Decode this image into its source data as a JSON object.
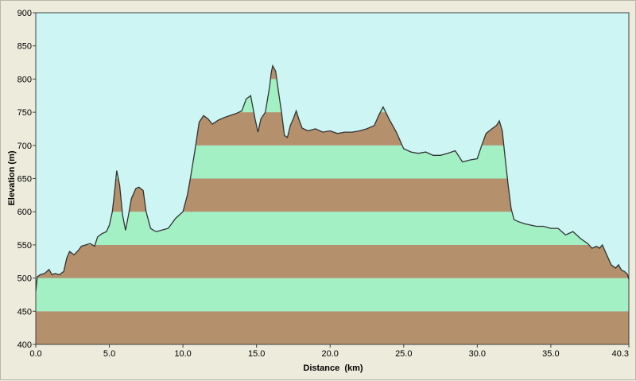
{
  "chart_data": {
    "type": "area",
    "title": "",
    "xlabel": "Distance  (km)",
    "ylabel": "Elevation (m)",
    "xlim": [
      0,
      40.3
    ],
    "ylim": [
      400,
      900
    ],
    "x_ticks": [
      "0.0",
      "5.0",
      "10.0",
      "15.0",
      "20.0",
      "25.0",
      "30.0",
      "35.0",
      "40.3"
    ],
    "x_tick_values": [
      0,
      5,
      10,
      15,
      20,
      25,
      30,
      35,
      40.3
    ],
    "y_ticks": [
      "400",
      "450",
      "500",
      "550",
      "600",
      "650",
      "700",
      "750",
      "800",
      "850",
      "900"
    ],
    "y_tick_values": [
      400,
      450,
      500,
      550,
      600,
      650,
      700,
      750,
      800,
      850,
      900
    ],
    "band_size": 50,
    "grid": false,
    "colors": {
      "background": "#ccf5f4",
      "band_low": "#b4906c",
      "band_high": "#a2f0c4",
      "profile_line": "#333333"
    },
    "series": [
      {
        "x": [
          0.0,
          0.1,
          0.3,
          0.6,
          0.9,
          1.1,
          1.3,
          1.6,
          1.9,
          2.1,
          2.3,
          2.6,
          2.9,
          3.1,
          3.4,
          3.7,
          4.0,
          4.2,
          4.5,
          4.8,
          5.0,
          5.2,
          5.4,
          5.5,
          5.7,
          5.9,
          6.1,
          6.3,
          6.5,
          6.8,
          7.0,
          7.3,
          7.5,
          7.8,
          8.0,
          8.2,
          8.5,
          9.0,
          9.5,
          10.0,
          10.3,
          10.5,
          10.8,
          11.1,
          11.4,
          11.7,
          12.0,
          12.4,
          12.8,
          13.2,
          13.6,
          14.0,
          14.3,
          14.6,
          14.9,
          15.1,
          15.3,
          15.6,
          15.9,
          16.0,
          16.1,
          16.3,
          16.5,
          16.7,
          16.9,
          17.1,
          17.3,
          17.5,
          17.7,
          17.9,
          18.1,
          18.5,
          19.0,
          19.5,
          20.0,
          20.5,
          21.0,
          21.5,
          22.0,
          22.5,
          23.0,
          23.3,
          23.6,
          24.0,
          24.5,
          25.0,
          25.5,
          26.0,
          26.5,
          27.0,
          27.5,
          28.0,
          28.5,
          29.0,
          29.5,
          30.0,
          30.3,
          30.6,
          31.0,
          31.3,
          31.5,
          31.7,
          31.9,
          32.1,
          32.3,
          32.5,
          32.8,
          33.2,
          33.6,
          34.0,
          34.5,
          35.0,
          35.5,
          36.0,
          36.5,
          37.0,
          37.5,
          37.8,
          38.1,
          38.3,
          38.5,
          38.8,
          39.1,
          39.4,
          39.6,
          39.8,
          40.0,
          40.2,
          40.3
        ],
        "values": [
          480,
          502,
          505,
          507,
          513,
          505,
          507,
          505,
          510,
          530,
          540,
          535,
          542,
          548,
          550,
          552,
          548,
          562,
          567,
          570,
          580,
          600,
          640,
          662,
          640,
          595,
          572,
          595,
          620,
          635,
          637,
          632,
          600,
          575,
          572,
          570,
          572,
          575,
          590,
          600,
          625,
          650,
          690,
          735,
          745,
          740,
          732,
          738,
          742,
          745,
          748,
          752,
          770,
          775,
          740,
          720,
          740,
          750,
          790,
          810,
          820,
          812,
          780,
          750,
          715,
          712,
          730,
          740,
          752,
          738,
          726,
          722,
          725,
          720,
          722,
          718,
          720,
          720,
          722,
          725,
          730,
          745,
          758,
          740,
          720,
          695,
          690,
          688,
          690,
          685,
          685,
          688,
          692,
          675,
          678,
          680,
          700,
          718,
          725,
          730,
          737,
          722,
          680,
          640,
          605,
          588,
          585,
          582,
          580,
          578,
          578,
          575,
          575,
          565,
          570,
          560,
          552,
          545,
          548,
          545,
          550,
          535,
          520,
          515,
          520,
          512,
          510,
          506,
          498
        ]
      }
    ]
  }
}
